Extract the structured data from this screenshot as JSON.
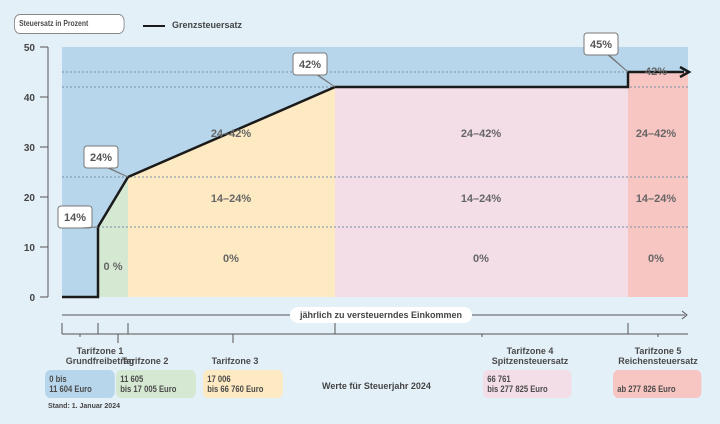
{
  "legend": {
    "axis_label": "Steuersatz in Prozent",
    "series_label": "Grenzsteuersatz"
  },
  "x_axis_label": "jährlich zu versteuerndes Einkommen",
  "year_note": "Werte für Steuerjahr 2024",
  "stand": "Stand: 1. Januar 2024",
  "colors": {
    "background": "#e4f0f8",
    "above_line": "#b7d6eb",
    "zone1": "#b7d6eb",
    "zone2": "#d5e8d2",
    "zone3": "#fde9c2",
    "zone4": "#f3dde7",
    "zone5": "#f8c6c2",
    "line": "#1a1a1a"
  },
  "zones": [
    {
      "label1": "Tarifzone 1",
      "label2": "Grundfreibetrag",
      "range1": "0 bis",
      "range2": "11 604 Euro",
      "color": "#b7d6eb"
    },
    {
      "label1": "Tarifzone 2",
      "label2": "",
      "range1": "11 605",
      "range2": "bis 17 005 Euro",
      "color": "#d5e8d2"
    },
    {
      "label1": "Tarifzone 3",
      "label2": "",
      "range1": "17 006",
      "range2": "bis 66 760 Euro",
      "color": "#fde9c2"
    },
    {
      "label1": "Tarifzone 4",
      "label2": "Spitzensteuersatz",
      "range1": "66 761",
      "range2": "bis 277 825 Euro",
      "color": "#f3dde7"
    },
    {
      "label1": "Tarifzone 5",
      "label2": "Reichensteuersatz",
      "range1": "",
      "range2": "ab 277 826 Euro",
      "color": "#f8c6c2"
    }
  ],
  "chart_data": {
    "type": "line",
    "title": "",
    "ylabel": "Steuersatz in Prozent",
    "xlabel": "jährlich zu versteuerndes Einkommen",
    "ylim": [
      0,
      50
    ],
    "yticks": [
      0,
      10,
      20,
      30,
      40,
      50
    ],
    "ytick_labels": [
      "0",
      "10",
      "20",
      "30",
      "40",
      "50"
    ],
    "series": [
      {
        "name": "Grenzsteuersatz",
        "x": [
          0,
          11604,
          11605,
          17005,
          66760,
          277825,
          277826
        ],
        "y": [
          0,
          0,
          14,
          24,
          42,
          42,
          45
        ]
      }
    ],
    "callouts": [
      "14%",
      "24%",
      "42%",
      "45%"
    ],
    "dashed_levels": [
      14,
      24,
      42,
      45
    ],
    "zone_band_labels": [
      [
        "0 %"
      ],
      [
        "0%",
        "14–24%",
        "24–42%"
      ],
      [
        "0%",
        "14–24%",
        "24–42%"
      ],
      [
        "0%",
        "14–24%",
        "24–42%",
        "42%"
      ]
    ]
  }
}
